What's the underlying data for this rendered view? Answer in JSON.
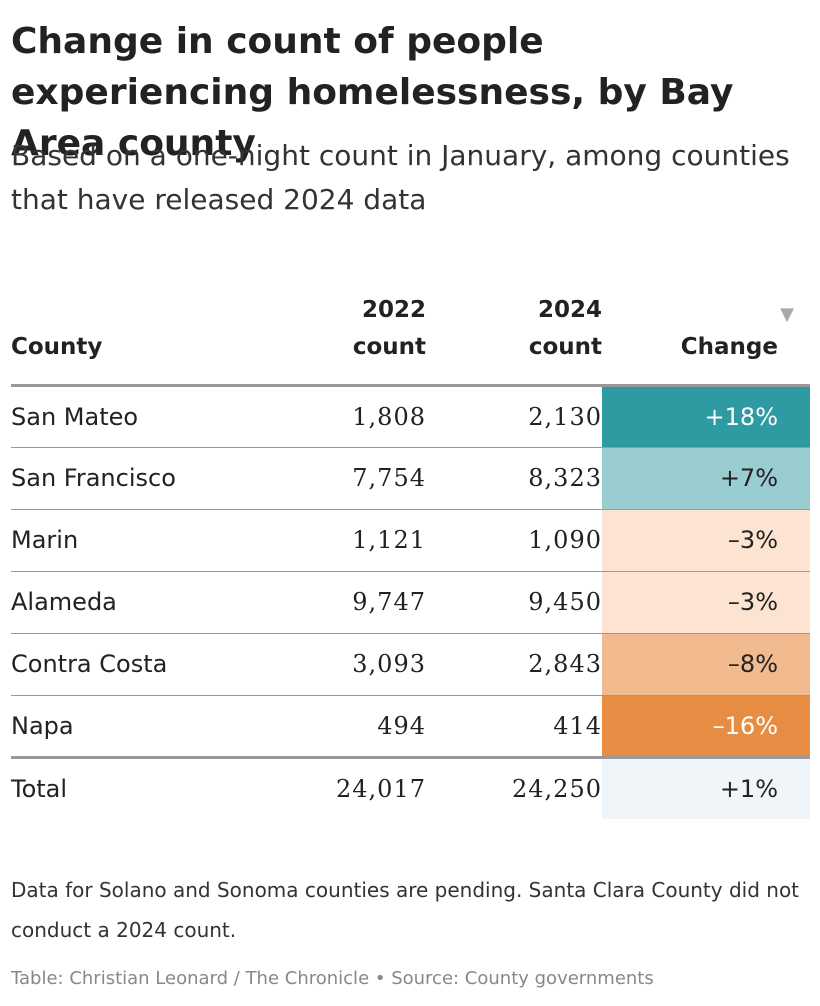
{
  "chart_data": {
    "type": "table",
    "title": "Change in count of people experiencing homelessness, by Bay Area county",
    "subtitle": "Based on a one-night count in January, among counties that have released 2024 data",
    "columns": [
      {
        "top": "",
        "bottom": "County"
      },
      {
        "top": "2022",
        "bottom": "count"
      },
      {
        "top": "2024",
        "bottom": "count"
      },
      {
        "top": "",
        "bottom": "Change"
      }
    ],
    "sort_icon": "▼",
    "rows": [
      {
        "county": "San Mateo",
        "c2022": "1,808",
        "c2024": "2,130",
        "change": "+18%",
        "change_value": 18,
        "bg": "#2e9aa1",
        "fg": "#ffffff"
      },
      {
        "county": "San Francisco",
        "c2022": "7,754",
        "c2024": "8,323",
        "change": "+7%",
        "change_value": 7,
        "bg": "#9acdd2",
        "fg": "#222222"
      },
      {
        "county": "Marin",
        "c2022": "1,121",
        "c2024": "1,090",
        "change": "–3%",
        "change_value": -3,
        "bg": "#fce3d2",
        "fg": "#222222"
      },
      {
        "county": "Alameda",
        "c2022": "9,747",
        "c2024": "9,450",
        "change": "–3%",
        "change_value": -3,
        "bg": "#fce3d2",
        "fg": "#222222"
      },
      {
        "county": "Contra Costa",
        "c2022": "3,093",
        "c2024": "2,843",
        "change": "–8%",
        "change_value": -8,
        "bg": "#f1bb8f",
        "fg": "#222222"
      },
      {
        "county": "Napa",
        "c2022": "494",
        "c2024": "414",
        "change": "–16%",
        "change_value": -16,
        "bg": "#e68d43",
        "fg": "#ffffff"
      }
    ],
    "total": {
      "county": "Total",
      "c2022": "24,017",
      "c2024": "24,250",
      "change": "+1%",
      "change_value": 1,
      "bg": "#eff5f8",
      "fg": "#222222"
    }
  },
  "footnote": "Data for Solano and Sonoma counties are pending. Santa Clara County did not conduct a 2024 count.",
  "credit": "Table: Christian Leonard / The Chronicle • Source: County governments"
}
